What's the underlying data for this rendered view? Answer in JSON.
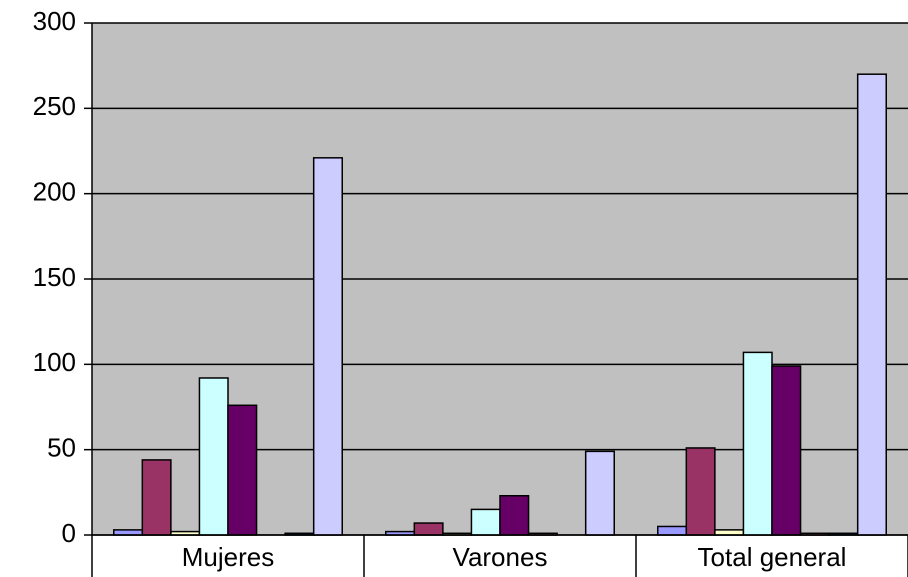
{
  "chart_data": {
    "type": "bar",
    "categories": [
      "Mujeres",
      "Varones",
      "Total general"
    ],
    "series": [
      {
        "color": "#9999ff",
        "values": [
          3,
          2,
          5
        ]
      },
      {
        "color": "#993366",
        "values": [
          44,
          7,
          51
        ]
      },
      {
        "color": "#ffffcc",
        "values": [
          2,
          1,
          3
        ]
      },
      {
        "color": "#ccffff",
        "values": [
          92,
          15,
          107
        ]
      },
      {
        "color": "#660066",
        "values": [
          76,
          23,
          99
        ]
      },
      {
        "color": "#ff8080",
        "values": [
          0,
          1,
          1
        ]
      },
      {
        "color": "#0066cc",
        "values": [
          1,
          0,
          1
        ]
      },
      {
        "color": "#ccccff",
        "values": [
          221,
          49,
          270
        ]
      }
    ],
    "ylim": [
      0,
      300
    ],
    "yticks": [
      0,
      50,
      100,
      150,
      200,
      250,
      300
    ],
    "grid": true
  }
}
